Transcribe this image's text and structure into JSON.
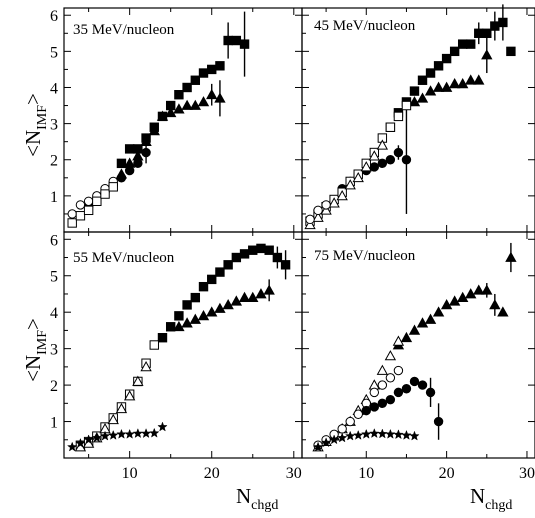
{
  "figure": {
    "ylabel": "<N",
    "ylabel_sub": "IMF",
    "ylabel_end": ">",
    "xlabel": "N",
    "xlabel_sub": "chgd"
  },
  "chart_data": [
    {
      "type": "scatter",
      "title": "35 MeV/nucleon",
      "xlim": [
        2,
        31
      ],
      "ylim": [
        0,
        6.2
      ],
      "xticks": [],
      "yticks": [
        "1",
        "2",
        "3",
        "4",
        "5",
        "6"
      ],
      "series": [
        {
          "marker": "filled-square",
          "x": [
            9,
            10,
            11,
            12,
            13,
            14,
            15,
            16,
            17,
            18,
            19,
            20,
            21,
            22,
            23,
            24
          ],
          "y": [
            1.9,
            2.3,
            2.3,
            2.6,
            2.9,
            3.2,
            3.5,
            3.8,
            4.0,
            4.2,
            4.4,
            4.5,
            4.6,
            5.3,
            5.3,
            5.2
          ],
          "err": [
            0,
            0,
            0,
            0,
            0,
            0,
            0,
            0,
            0,
            0,
            0,
            0,
            0,
            0.5,
            0,
            0.9
          ]
        },
        {
          "marker": "filled-triangle",
          "x": [
            9,
            10,
            11,
            12,
            13,
            14,
            15,
            16,
            17,
            18,
            19,
            20,
            21
          ],
          "y": [
            1.6,
            1.9,
            2.1,
            2.5,
            2.8,
            3.2,
            3.3,
            3.4,
            3.5,
            3.5,
            3.6,
            3.8,
            3.7
          ],
          "err": [
            0,
            0,
            0,
            0,
            0,
            0,
            0,
            0,
            0,
            0,
            0,
            0.3,
            0.5
          ]
        },
        {
          "marker": "filled-circle",
          "x": [
            5,
            6,
            7,
            8,
            9,
            10,
            11,
            12
          ],
          "y": [
            0.7,
            0.9,
            1.1,
            1.3,
            1.5,
            1.7,
            1.9,
            2.2
          ],
          "err": [
            0,
            0,
            0,
            0,
            0,
            0,
            0,
            0.3
          ]
        },
        {
          "marker": "open-circle",
          "x": [
            3,
            4,
            5,
            6,
            7,
            8
          ],
          "y": [
            0.5,
            0.75,
            0.85,
            1.0,
            1.2,
            1.4
          ],
          "err": []
        },
        {
          "marker": "open-square",
          "x": [
            3,
            4,
            5,
            6,
            7,
            8
          ],
          "y": [
            0.25,
            0.45,
            0.6,
            0.85,
            1.05,
            1.25
          ],
          "err": []
        }
      ]
    },
    {
      "type": "scatter",
      "title": "45 MeV/nucleon",
      "xlim": [
        2,
        31
      ],
      "ylim": [
        0,
        6.2
      ],
      "xticks": [],
      "yticks": [],
      "series": [
        {
          "marker": "filled-square",
          "x": [
            13,
            14,
            15,
            16,
            17,
            18,
            19,
            20,
            21,
            22,
            23,
            24,
            25,
            26,
            27,
            28
          ],
          "y": [
            2.9,
            3.3,
            3.6,
            3.9,
            4.2,
            4.4,
            4.6,
            4.8,
            5.0,
            5.2,
            5.2,
            5.5,
            5.5,
            5.7,
            5.8,
            5.0
          ],
          "err": [
            0,
            0,
            0,
            0,
            0,
            0,
            0,
            0,
            0,
            0,
            0,
            0.3,
            0,
            0.4,
            0.5,
            0
          ]
        },
        {
          "marker": "filled-triangle",
          "x": [
            16,
            17,
            18,
            19,
            20,
            21,
            22,
            23,
            24,
            25
          ],
          "y": [
            3.6,
            3.7,
            3.9,
            4.0,
            4.0,
            4.1,
            4.1,
            4.2,
            4.2,
            4.9
          ],
          "err": [
            0,
            0,
            0,
            0,
            0,
            0,
            0,
            0,
            0,
            0.5
          ]
        },
        {
          "marker": "filled-circle",
          "x": [
            7,
            8,
            9,
            10,
            11,
            12,
            13,
            14,
            15
          ],
          "y": [
            1.2,
            1.4,
            1.6,
            1.7,
            1.8,
            1.9,
            2.0,
            2.2,
            2.0
          ],
          "err": [
            0,
            0,
            0,
            0,
            0,
            0,
            0,
            0.2,
            1.5
          ]
        },
        {
          "marker": "open-square",
          "x": [
            3,
            4,
            5,
            6,
            7,
            8,
            9,
            10,
            11,
            12,
            13,
            14,
            15
          ],
          "y": [
            0.3,
            0.5,
            0.7,
            0.9,
            1.1,
            1.4,
            1.6,
            1.9,
            2.2,
            2.6,
            2.9,
            3.2,
            3.5
          ],
          "err": []
        },
        {
          "marker": "open-triangle",
          "x": [
            3,
            4,
            5,
            6,
            7,
            8,
            9,
            10,
            11,
            12
          ],
          "y": [
            0.2,
            0.4,
            0.6,
            0.8,
            1.0,
            1.3,
            1.5,
            1.8,
            2.1,
            2.4
          ],
          "err": []
        },
        {
          "marker": "open-circle",
          "x": [
            3,
            4,
            5
          ],
          "y": [
            0.35,
            0.6,
            0.75
          ],
          "err": []
        }
      ]
    },
    {
      "type": "scatter",
      "title": "55 MeV/nucleon",
      "xlim": [
        2,
        31
      ],
      "ylim": [
        0,
        6.2
      ],
      "xticks": [
        "10",
        "20",
        "30"
      ],
      "yticks": [
        "1",
        "2",
        "3",
        "4",
        "5",
        "6"
      ],
      "series": [
        {
          "marker": "filled-square",
          "x": [
            14,
            15,
            16,
            17,
            18,
            19,
            20,
            21,
            22,
            23,
            24,
            25,
            26,
            27,
            28,
            29
          ],
          "y": [
            3.3,
            3.6,
            3.9,
            4.2,
            4.4,
            4.7,
            4.9,
            5.1,
            5.3,
            5.5,
            5.6,
            5.7,
            5.75,
            5.7,
            5.5,
            5.3
          ],
          "err": [
            0,
            0,
            0,
            0,
            0,
            0,
            0,
            0,
            0,
            0,
            0,
            0,
            0,
            0,
            0.3,
            0.4
          ]
        },
        {
          "marker": "filled-triangle",
          "x": [
            16,
            17,
            18,
            19,
            20,
            21,
            22,
            23,
            24,
            25,
            26,
            27
          ],
          "y": [
            3.6,
            3.7,
            3.8,
            3.9,
            4.0,
            4.1,
            4.2,
            4.3,
            4.4,
            4.4,
            4.5,
            4.6
          ],
          "err": [
            0,
            0,
            0,
            0,
            0,
            0,
            0,
            0,
            0,
            0,
            0,
            0.3
          ]
        },
        {
          "marker": "open-square",
          "x": [
            4,
            5,
            6,
            7,
            8,
            9,
            10,
            11,
            12,
            13
          ],
          "y": [
            0.35,
            0.45,
            0.6,
            0.85,
            1.1,
            1.4,
            1.75,
            2.1,
            2.6,
            3.1
          ],
          "err": []
        },
        {
          "marker": "open-triangle",
          "x": [
            4,
            5,
            6,
            7,
            8,
            9,
            10,
            11,
            12
          ],
          "y": [
            0.3,
            0.4,
            0.55,
            0.8,
            1.05,
            1.35,
            1.7,
            2.1,
            2.5
          ],
          "err": []
        },
        {
          "marker": "filled-star",
          "x": [
            3,
            4,
            5,
            6,
            7,
            8,
            9,
            10,
            11,
            12,
            13,
            14
          ],
          "y": [
            0.3,
            0.4,
            0.5,
            0.55,
            0.6,
            0.62,
            0.65,
            0.65,
            0.67,
            0.67,
            0.68,
            0.85
          ],
          "err": []
        }
      ]
    },
    {
      "type": "scatter",
      "title": "75 MeV/nucleon",
      "xlim": [
        2,
        31
      ],
      "ylim": [
        0,
        6.2
      ],
      "xticks": [
        "10",
        "20",
        "30"
      ],
      "yticks": [],
      "series": [
        {
          "marker": "filled-triangle",
          "x": [
            14,
            15,
            16,
            17,
            18,
            19,
            20,
            21,
            22,
            23,
            24,
            25,
            26,
            27,
            28
          ],
          "y": [
            3.1,
            3.3,
            3.5,
            3.7,
            3.8,
            4.0,
            4.2,
            4.3,
            4.4,
            4.5,
            4.6,
            4.6,
            4.2,
            4.0,
            5.5
          ],
          "err": [
            0,
            0,
            0,
            0,
            0,
            0,
            0,
            0,
            0,
            0,
            0,
            0.2,
            0.3,
            0,
            0.4
          ]
        },
        {
          "marker": "open-triangle",
          "x": [
            4,
            5,
            6,
            7,
            8,
            9,
            10,
            11,
            12,
            13,
            14
          ],
          "y": [
            0.3,
            0.45,
            0.6,
            0.8,
            1.0,
            1.3,
            1.6,
            2.0,
            2.4,
            2.8,
            3.2
          ],
          "err": []
        },
        {
          "marker": "open-circle",
          "x": [
            4,
            5,
            6,
            7,
            8,
            9,
            10,
            11,
            12,
            13,
            14
          ],
          "y": [
            0.35,
            0.5,
            0.65,
            0.8,
            1.0,
            1.2,
            1.5,
            1.8,
            2.0,
            2.2,
            2.4
          ],
          "err": []
        },
        {
          "marker": "filled-circle",
          "x": [
            10,
            11,
            12,
            13,
            14,
            15,
            16,
            17,
            18
          ],
          "y": [
            1.3,
            1.4,
            1.5,
            1.6,
            1.8,
            1.9,
            2.1,
            2.0,
            1.8
          ],
          "err": [
            0,
            0,
            0,
            0,
            0,
            0,
            0,
            0,
            0.4
          ]
        },
        {
          "marker": "filled-circle",
          "x": [
            19
          ],
          "y": [
            1.0
          ],
          "err": [
            0.5
          ]
        },
        {
          "marker": "filled-star",
          "x": [
            4,
            5,
            6,
            7,
            8,
            9,
            10,
            11,
            12,
            13,
            14,
            15,
            16
          ],
          "y": [
            0.3,
            0.42,
            0.5,
            0.55,
            0.6,
            0.62,
            0.65,
            0.67,
            0.66,
            0.65,
            0.64,
            0.62,
            0.6
          ],
          "err": []
        }
      ]
    }
  ]
}
